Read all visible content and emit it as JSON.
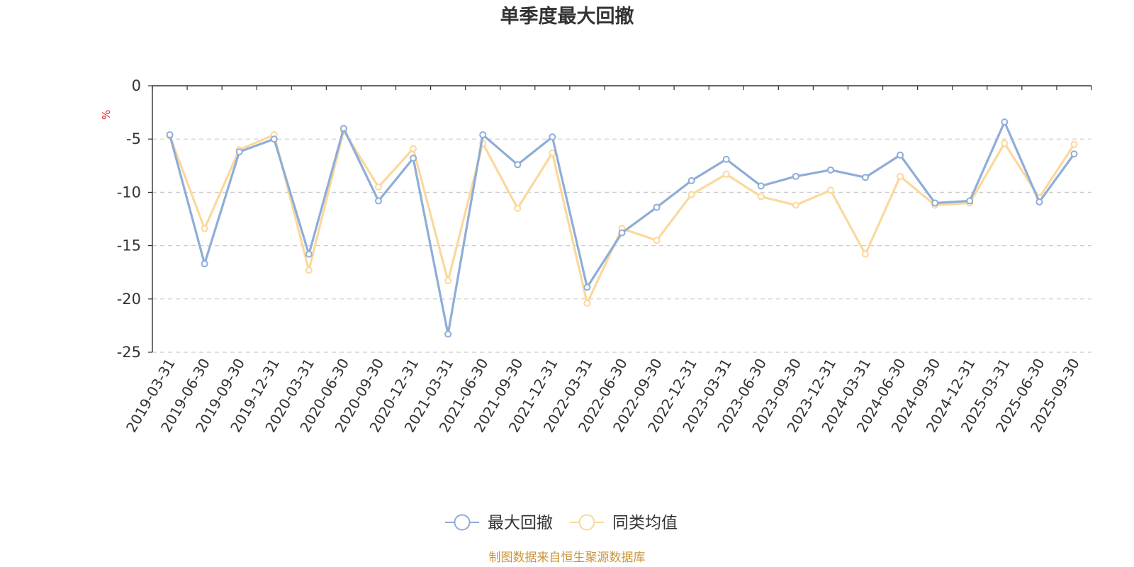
{
  "chart_data": {
    "type": "line",
    "title": "单季度最大回撤",
    "ylabel": "%",
    "ylim": [
      -25,
      0
    ],
    "yticks": [
      0,
      -5,
      -10,
      -15,
      -20,
      -25
    ],
    "grid": true,
    "legend_position": "bottom-center",
    "x": [
      "2019-03-31",
      "2019-06-30",
      "2019-09-30",
      "2019-12-31",
      "2020-03-31",
      "2020-06-30",
      "2020-09-30",
      "2020-12-31",
      "2021-03-31",
      "2021-06-30",
      "2021-09-30",
      "2021-12-31",
      "2022-03-31",
      "2022-06-30",
      "2022-09-30",
      "2022-12-31",
      "2023-03-31",
      "2023-06-30",
      "2023-09-30",
      "2023-12-31",
      "2024-03-31",
      "2024-06-30",
      "2024-09-30",
      "2024-12-31",
      "2025-03-31",
      "2025-06-30",
      "2025-09-30"
    ],
    "series": [
      {
        "name": "最大回撤",
        "color": "#8eadd8",
        "values": [
          -4.6,
          -16.7,
          -6.2,
          -5.0,
          -15.8,
          -4.0,
          -10.8,
          -6.8,
          -23.3,
          -4.6,
          -7.4,
          -4.8,
          -18.9,
          -13.8,
          -11.4,
          -8.9,
          -6.9,
          -9.4,
          -8.5,
          -7.9,
          -8.6,
          -6.5,
          -11.0,
          -10.8,
          -3.4,
          -10.9,
          -6.4
        ]
      },
      {
        "name": "同类均值",
        "color": "#fbd89b",
        "values": [
          -4.7,
          -13.4,
          -6.0,
          -4.6,
          -17.3,
          -4.2,
          -9.5,
          -5.9,
          -18.3,
          -5.4,
          -11.5,
          -6.3,
          -20.4,
          -13.4,
          -14.5,
          -10.2,
          -8.3,
          -10.4,
          -11.2,
          -9.8,
          -15.8,
          -8.5,
          -11.2,
          -11.0,
          -5.4,
          -10.5,
          -5.5
        ]
      }
    ]
  },
  "footer": {
    "source_text": "制图数据来自恒生聚源数据库",
    "source_color": "#c8963a"
  },
  "style": {
    "axis_color": "#333333",
    "grid_color": "#cccccc",
    "ylabel_color": "#e02020",
    "tick_label_color": "#333333"
  }
}
